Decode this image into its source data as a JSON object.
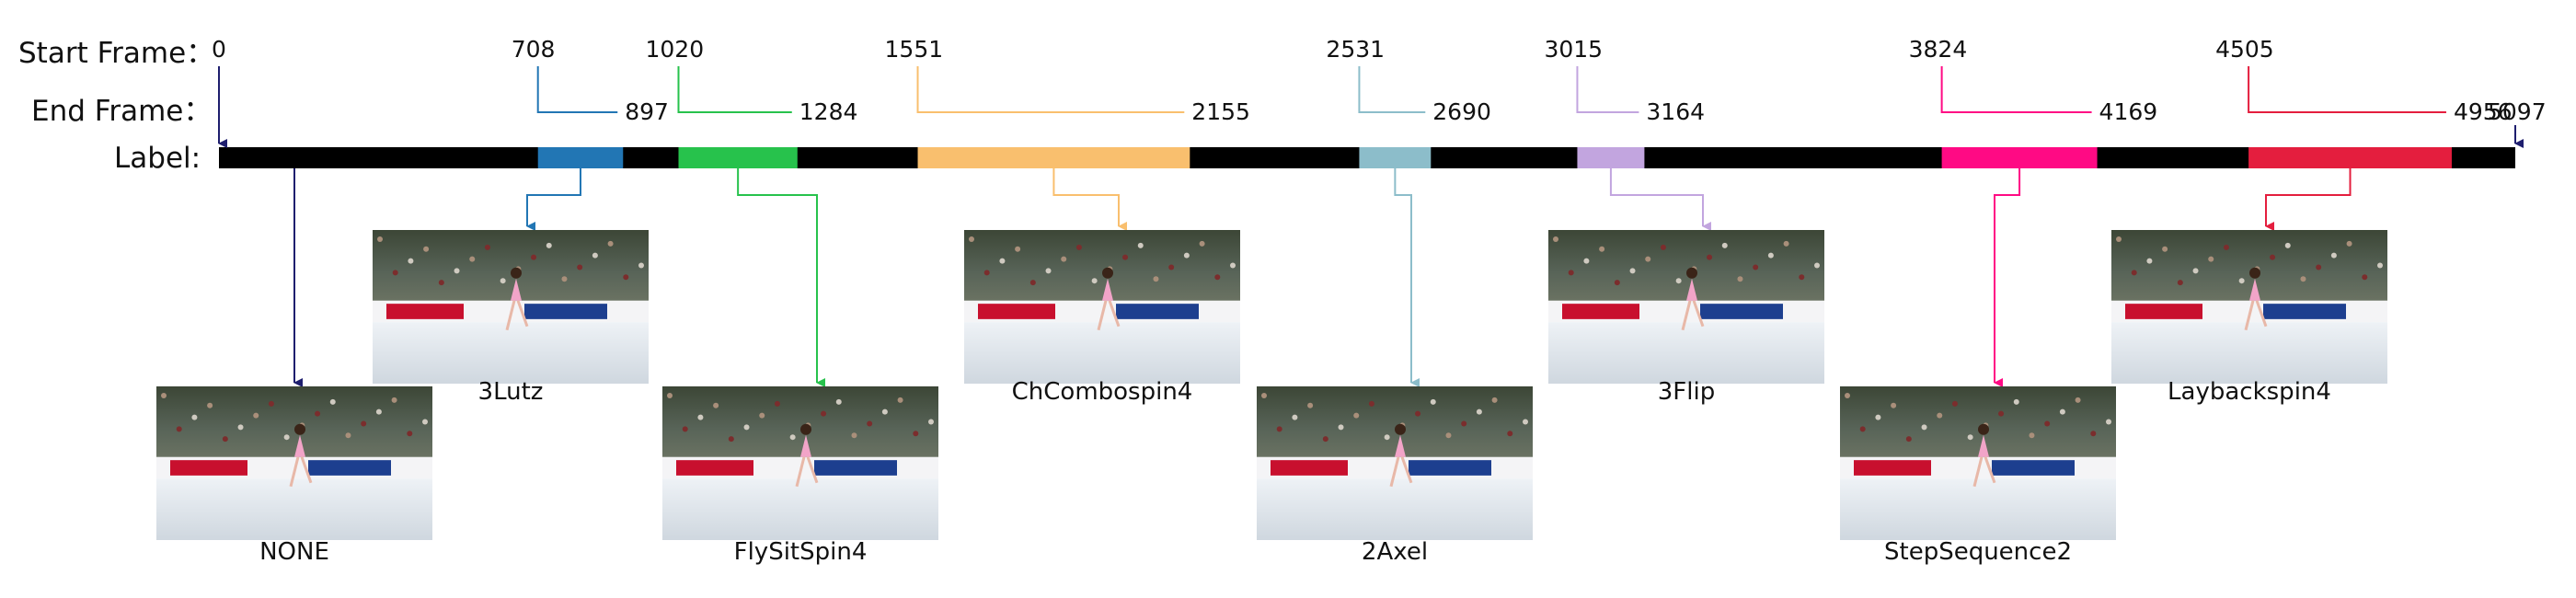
{
  "row_labels": {
    "start": "Start Frame：",
    "end": "End Frame：",
    "label": "Label:"
  },
  "timeline": {
    "first_frame": "0",
    "last_frame": "5097",
    "bar_color": "#000000"
  },
  "segments": [
    {
      "start": "708",
      "end": "897",
      "action": "3Lutz",
      "color": "#2276b4"
    },
    {
      "start": "1020",
      "end": "1284",
      "action": "FlySitSpin4",
      "color": "#27c24c"
    },
    {
      "start": "1551",
      "end": "2155",
      "action": "ChCombospin4",
      "color": "#f9bf6e"
    },
    {
      "start": "2531",
      "end": "2690",
      "action": "2Axel",
      "color": "#8cbdca"
    },
    {
      "start": "3015",
      "end": "3164",
      "action": "3Flip",
      "color": "#c2a5df"
    },
    {
      "start": "3824",
      "end": "4169",
      "action": "StepSequence2",
      "color": "#ff0a84"
    },
    {
      "start": "4505",
      "end": "4956",
      "action": "Laybackspin4",
      "color": "#e41e3e"
    }
  ],
  "none_label": {
    "action": "NONE",
    "color": "#1e1e6e"
  }
}
